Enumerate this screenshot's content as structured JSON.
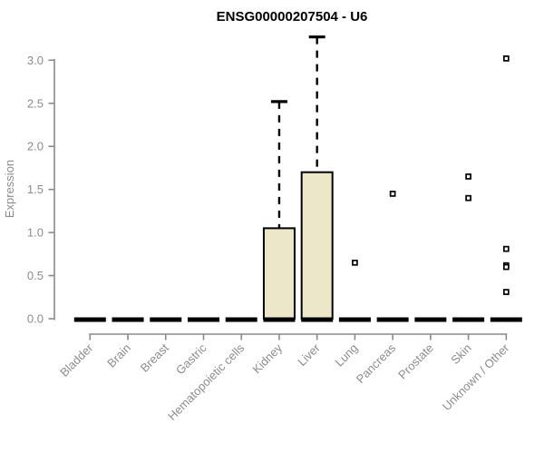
{
  "chart_data": {
    "type": "boxplot",
    "title": "ENSG00000207504 - U6",
    "xlabel": "",
    "ylabel": "Expression",
    "ylim": [
      0,
      3.3
    ],
    "yticks": [
      0.0,
      0.5,
      1.0,
      1.5,
      2.0,
      2.5,
      3.0
    ],
    "grid": false,
    "legend": null,
    "categories": [
      "Bladder",
      "Brain",
      "Breast",
      "Gastric",
      "Hematopoietic cells",
      "Kidney",
      "Liver",
      "Lung",
      "Pancreas",
      "Prostate",
      "Skin",
      "Unknown / Other"
    ],
    "series": [
      {
        "category": "Bladder",
        "low": 0,
        "q1": 0,
        "median": 0,
        "q3": 0,
        "high": 0,
        "outliers": []
      },
      {
        "category": "Brain",
        "low": 0,
        "q1": 0,
        "median": 0,
        "q3": 0,
        "high": 0,
        "outliers": []
      },
      {
        "category": "Breast",
        "low": 0,
        "q1": 0,
        "median": 0,
        "q3": 0,
        "high": 0,
        "outliers": []
      },
      {
        "category": "Gastric",
        "low": 0,
        "q1": 0,
        "median": 0,
        "q3": 0,
        "high": 0,
        "outliers": []
      },
      {
        "category": "Hematopoietic cells",
        "low": 0,
        "q1": 0,
        "median": 0,
        "q3": 0,
        "high": 0,
        "outliers": []
      },
      {
        "category": "Kidney",
        "low": 0,
        "q1": 0,
        "median": 0,
        "q3": 1.05,
        "high": 2.52,
        "outliers": []
      },
      {
        "category": "Liver",
        "low": 0,
        "q1": 0,
        "median": 0,
        "q3": 1.7,
        "high": 3.27,
        "outliers": []
      },
      {
        "category": "Lung",
        "low": 0,
        "q1": 0,
        "median": 0,
        "q3": 0,
        "high": 0,
        "outliers": [
          0.65
        ]
      },
      {
        "category": "Pancreas",
        "low": 0,
        "q1": 0,
        "median": 0,
        "q3": 0,
        "high": 0,
        "outliers": [
          1.45
        ]
      },
      {
        "category": "Prostate",
        "low": 0,
        "q1": 0,
        "median": 0,
        "q3": 0,
        "high": 0,
        "outliers": []
      },
      {
        "category": "Skin",
        "low": 0,
        "q1": 0,
        "median": 0,
        "q3": 0,
        "high": 0,
        "outliers": [
          1.65,
          1.4
        ]
      },
      {
        "category": "Unknown / Other",
        "low": 0,
        "q1": 0,
        "median": 0,
        "q3": 0,
        "high": 0,
        "outliers": [
          3.02,
          0.81,
          0.62,
          0.6,
          0.31
        ]
      }
    ],
    "colors": {
      "box_fill": "#EDE7CA",
      "box_stroke": "#000000",
      "median": "#000000",
      "whisker": "#000000",
      "outlier_stroke": "#000000",
      "outlier_fill": "#FFFFFF",
      "axis": "#8A8A8A",
      "tick_label": "#8C8C8C",
      "title": "#000000",
      "background": "#FFFFFF"
    }
  }
}
